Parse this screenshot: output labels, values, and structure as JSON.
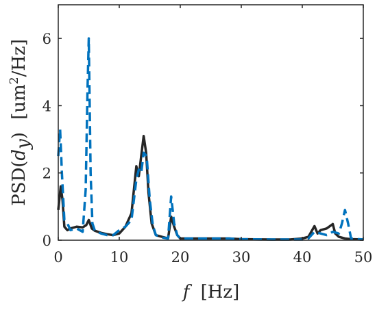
{
  "chart_data": {
    "type": "line",
    "title": "",
    "xlabel": {
      "symbol": "f",
      "unit": "[Hz]"
    },
    "ylabel": {
      "prefix": "PSD(",
      "symbol": "d",
      "subscript": "y",
      "suffix": ")",
      "unit_prefix": "[um",
      "unit_exp": "2",
      "unit_suffix": "/Hz]"
    },
    "xlim": [
      0,
      50
    ],
    "ylim": [
      0,
      7
    ],
    "xticks": [
      "0",
      "10",
      "20",
      "30",
      "40",
      "50"
    ],
    "yticks": [
      "0",
      "2",
      "4",
      "6"
    ],
    "grid": false,
    "legend": "none",
    "series": [
      {
        "style": "solid",
        "color": "#262626",
        "x": [
          0,
          0.4,
          0.7,
          1.0,
          1.5,
          2.0,
          3.0,
          4.0,
          4.6,
          5.0,
          5.5,
          6.0,
          7.0,
          8.0,
          9.0,
          10.0,
          11.0,
          12.0,
          12.8,
          13.2,
          13.6,
          14.0,
          14.4,
          14.8,
          15.3,
          16.0,
          17.0,
          18.0,
          18.5,
          19.0,
          19.5,
          20.0,
          22.0,
          25.0,
          28.0,
          30.0,
          35.0,
          38.0,
          40.0,
          41.0,
          42.0,
          42.5,
          43.0,
          44.0,
          45.0,
          45.4,
          46.0,
          47.0,
          48.0,
          50.0
        ],
        "y": [
          0.9,
          1.6,
          1.2,
          0.4,
          0.3,
          0.35,
          0.4,
          0.38,
          0.45,
          0.6,
          0.35,
          0.28,
          0.22,
          0.18,
          0.15,
          0.2,
          0.4,
          0.8,
          2.2,
          1.9,
          2.5,
          3.1,
          2.6,
          1.4,
          0.5,
          0.15,
          0.1,
          0.05,
          0.7,
          0.4,
          0.15,
          0.05,
          0.05,
          0.05,
          0.05,
          0.03,
          0.02,
          0.02,
          0.05,
          0.1,
          0.42,
          0.2,
          0.3,
          0.35,
          0.48,
          0.2,
          0.1,
          0.05,
          0.03,
          0.02
        ]
      },
      {
        "style": "dashed",
        "color": "#0072BD",
        "x": [
          0,
          0.3,
          0.6,
          1.0,
          1.5,
          2.0,
          3.0,
          4.0,
          4.5,
          4.8,
          5.0,
          5.3,
          5.6,
          6.0,
          7.0,
          8.0,
          9.0,
          10.0,
          11.0,
          12.0,
          12.8,
          13.2,
          13.6,
          14.0,
          14.5,
          15.0,
          15.5,
          16.0,
          17.0,
          18.0,
          18.5,
          19.0,
          19.5,
          20.0,
          22.0,
          25.0,
          28.0,
          30.0,
          35.0,
          40.0,
          41.0,
          42.0,
          43.0,
          44.0,
          45.0,
          46.0,
          46.5,
          47.0,
          47.5,
          48.0,
          50.0
        ],
        "y": [
          2.5,
          3.3,
          2.0,
          0.6,
          0.5,
          0.3,
          0.35,
          0.25,
          1.5,
          4.5,
          6.0,
          2.0,
          0.5,
          0.28,
          0.2,
          0.15,
          0.15,
          0.3,
          0.4,
          0.6,
          1.8,
          2.1,
          2.0,
          2.6,
          2.5,
          1.2,
          0.45,
          0.15,
          0.08,
          0.05,
          1.3,
          0.5,
          0.15,
          0.05,
          0.05,
          0.05,
          0.05,
          0.03,
          0.02,
          0.02,
          0.05,
          0.25,
          0.2,
          0.15,
          0.25,
          0.2,
          0.5,
          0.9,
          0.5,
          0.05,
          0.02
        ]
      }
    ]
  }
}
